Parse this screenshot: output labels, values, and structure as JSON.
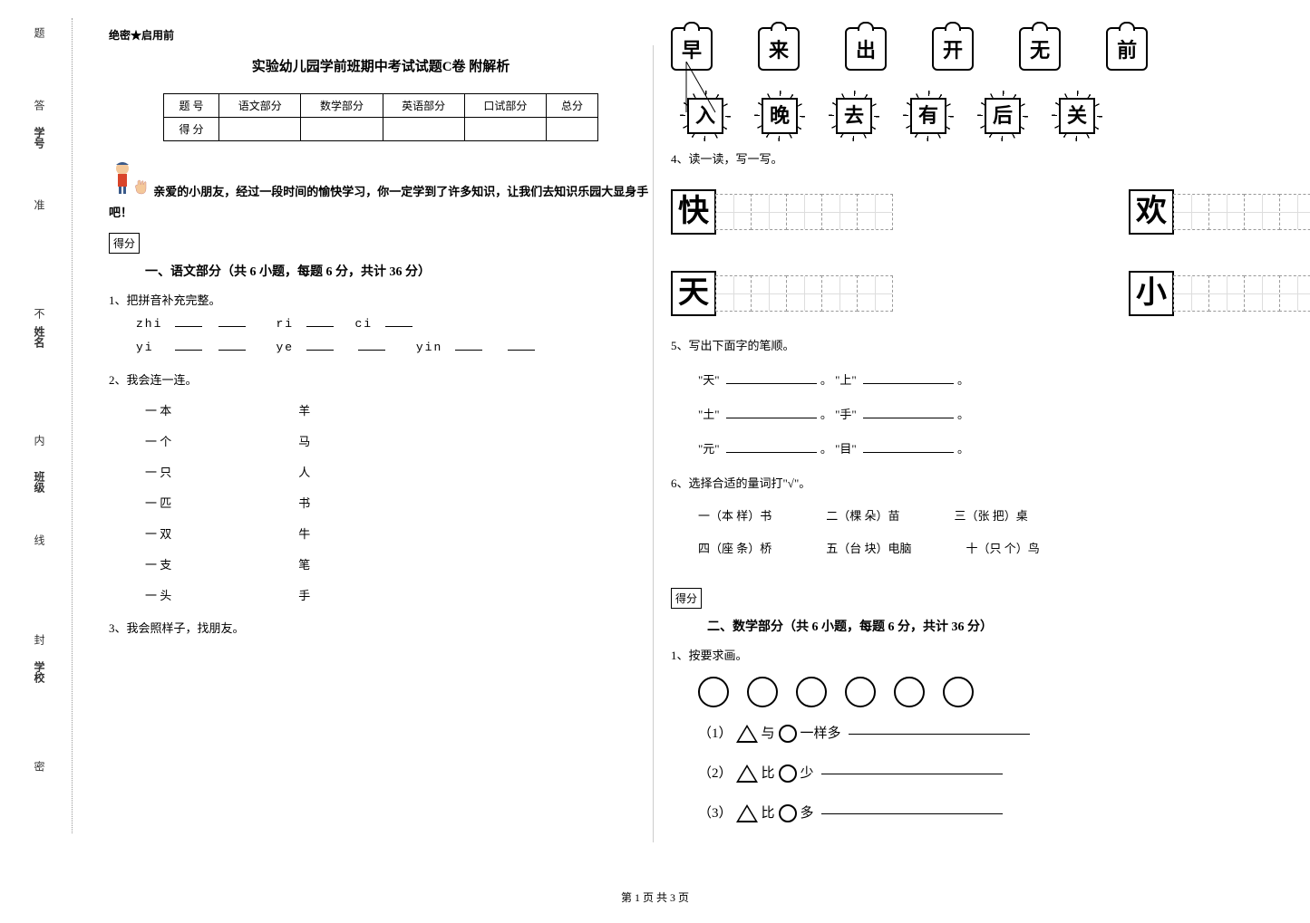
{
  "sidebar": {
    "labels": [
      "学号",
      "姓名",
      "班级",
      "学校"
    ],
    "markers": [
      "答",
      "准",
      "不",
      "内",
      "线",
      "封",
      "密"
    ],
    "suffix": "题"
  },
  "header": {
    "secret": "绝密★启用前",
    "title": "实验幼儿园学前班期中考试试题C卷 附解析"
  },
  "score_table": {
    "row1": [
      "题  号",
      "语文部分",
      "数学部分",
      "英语部分",
      "口试部分",
      "总分"
    ],
    "row2_label": "得  分"
  },
  "intro": "亲爱的小朋友，经过一段时间的愉快学习，你一定学到了许多知识，让我们去知识乐园大显身手吧！",
  "score_badge": "得分",
  "sections": {
    "s1": {
      "title": "一、语文部分（共 6 小题，每题 6 分，共计 36 分）",
      "q1": {
        "label": "1、把拼音补充完整。",
        "line1_parts": [
          "zhi",
          "ri",
          "ci"
        ],
        "line2_parts": [
          "yi",
          "ye",
          "yin"
        ]
      },
      "q2": {
        "label": "2、我会连一连。",
        "pairs": [
          [
            "一 本",
            "羊"
          ],
          [
            "一 个",
            "马"
          ],
          [
            "一 只",
            "人"
          ],
          [
            "一 匹",
            "书"
          ],
          [
            "一 双",
            "牛"
          ],
          [
            "一 支",
            "笔"
          ],
          [
            "一 头",
            "手"
          ]
        ]
      },
      "q3": {
        "label": "3、我会照样子，找朋友。"
      },
      "q3_top": [
        "早",
        "来",
        "出",
        "开",
        "无",
        "前"
      ],
      "q3_bottom": [
        "入",
        "晚",
        "去",
        "有",
        "后",
        "关"
      ],
      "q4": {
        "label": "4、读一读，写一写。",
        "chars": [
          "快",
          "欢",
          "天",
          "小"
        ]
      },
      "q5": {
        "label": "5、写出下面字的笔顺。",
        "items": [
          [
            "天",
            "上"
          ],
          [
            "土",
            "手"
          ],
          [
            "元",
            "目"
          ]
        ]
      },
      "q6": {
        "label": "6、选择合适的量词打\"√\"。",
        "row1": [
          "一（本  样）书",
          "二（棵  朵）苗",
          "三（张  把）桌"
        ],
        "row2": [
          "四（座  条）桥",
          "五（台  块）电脑",
          "十（只  个）鸟"
        ]
      }
    },
    "s2": {
      "title": "二、数学部分（共 6 小题，每题 6 分，共计 36 分）",
      "q1": {
        "label": "1、按要求画。",
        "items": [
          {
            "num": "（1）",
            "op": "与",
            "suffix": "一样多"
          },
          {
            "num": "（2）",
            "op": "比",
            "suffix": "少"
          },
          {
            "num": "（3）",
            "op": "比",
            "suffix": "多"
          }
        ]
      }
    }
  },
  "footer": "第 1 页 共 3 页"
}
